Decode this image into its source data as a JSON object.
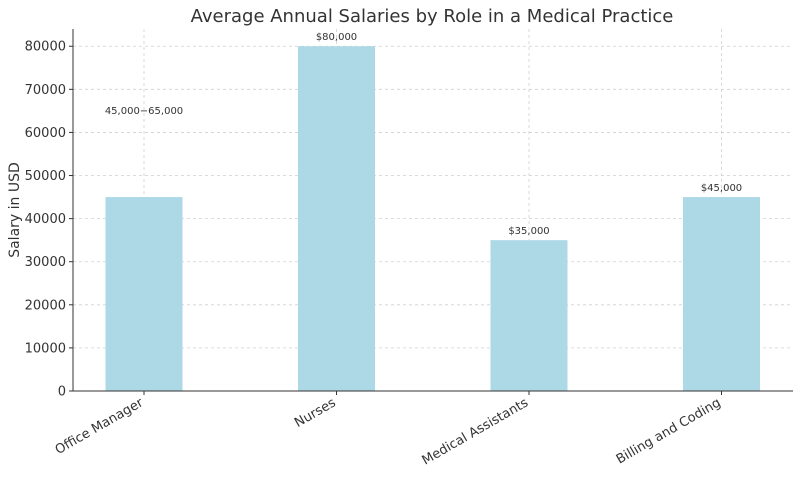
{
  "chart_data": {
    "type": "bar",
    "title": "Average Annual Salaries by Role in a Medical Practice",
    "xlabel": "",
    "ylabel": "Salary in USD",
    "categories": [
      "Office Manager",
      "Nurses",
      "Medical Assistants",
      "Billing and Coding"
    ],
    "values": [
      45000,
      80000,
      35000,
      45000
    ],
    "data_labels": [
      "45,000−65,000",
      "$80,000",
      "$35,000",
      "$45,000"
    ],
    "ylim": [
      0,
      84000
    ],
    "yticks": [
      0,
      10000,
      20000,
      30000,
      40000,
      50000,
      60000,
      70000,
      80000
    ],
    "ytick_labels": [
      "0",
      "10000",
      "20000",
      "30000",
      "40000",
      "50000",
      "60000",
      "70000",
      "80000"
    ],
    "grid": true,
    "bar_color": "#add8e6"
  }
}
